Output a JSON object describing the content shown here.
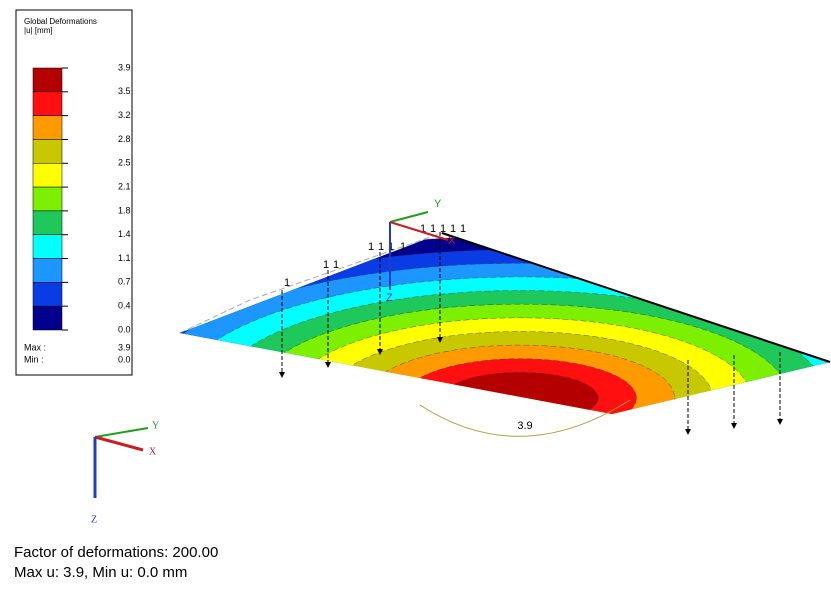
{
  "legend": {
    "title": "Global Deformations",
    "unit": "|u| [mm]",
    "values": [
      "3.9",
      "3.5",
      "3.2",
      "2.8",
      "2.5",
      "2.1",
      "1.8",
      "1.4",
      "1.1",
      "0.7",
      "0.4",
      "0.0"
    ],
    "colors": [
      "#b40000",
      "#ff0f0f",
      "#ff9a00",
      "#c8c800",
      "#ffff00",
      "#7cf000",
      "#1ec85a",
      "#00ffff",
      "#1e96ff",
      "#0a3ce6",
      "#00008c"
    ],
    "max_label": "Max :",
    "max_value": "3.9",
    "min_label": "Min :",
    "min_value": "0.0"
  },
  "view": {
    "axes": [
      "Y",
      "X",
      "Z"
    ],
    "plate_axes": [
      "Y",
      "X",
      "Z"
    ],
    "load_labels": [
      "1",
      "1",
      "1",
      "1",
      "1",
      "1",
      "1",
      "1",
      "1",
      "1",
      "1",
      "1"
    ],
    "max_marker": "3.9"
  },
  "footer": {
    "line1": "Factor of deformations: 200.00",
    "line2": "Max u: 3.9, Min u: 0.0 mm"
  }
}
